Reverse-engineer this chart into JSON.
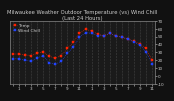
{
  "title": "Milwaukee Weather Outdoor Temperature (vs) Wind Chill (Last 24 Hours)",
  "title_fontsize": 3.8,
  "background_color": "#111111",
  "plot_bg_color": "#1a1a1a",
  "grid_color": "#555555",
  "temp_color": "#ff2200",
  "wind_chill_color": "#2244ff",
  "x_tick_labels": [
    "",
    "1",
    "",
    "3",
    "",
    "5",
    "",
    "7",
    "",
    "9",
    "",
    "11",
    "",
    "1",
    "",
    "3",
    "",
    "5",
    "",
    "7",
    "",
    "9",
    "",
    "11"
  ],
  "ylim": [
    -10,
    70
  ],
  "ylabel_fontsize": 3.0,
  "y_ticks": [
    -10,
    0,
    10,
    20,
    30,
    40,
    50,
    60,
    70
  ],
  "y_tick_labels": [
    "-10",
    "0",
    "10",
    "20",
    "30",
    "40",
    "50",
    "60",
    "70"
  ],
  "temp_data": [
    28,
    28,
    27,
    26,
    29,
    31,
    25,
    23,
    26,
    35,
    43,
    54,
    59,
    57,
    53,
    51,
    54,
    51,
    49,
    47,
    44,
    41,
    35,
    20
  ],
  "wind_chill_data": [
    22,
    22,
    20,
    19,
    23,
    26,
    17,
    15,
    19,
    29,
    37,
    49,
    55,
    54,
    51,
    51,
    54,
    51,
    49,
    47,
    43,
    39,
    31,
    16
  ],
  "legend_temp_label": "Temp",
  "legend_wc_label": "Wind Chill",
  "legend_fontsize": 3.2,
  "marker_size": 1.8,
  "line_width": 0.5,
  "text_color": "#cccccc",
  "title_color": "#cccccc"
}
